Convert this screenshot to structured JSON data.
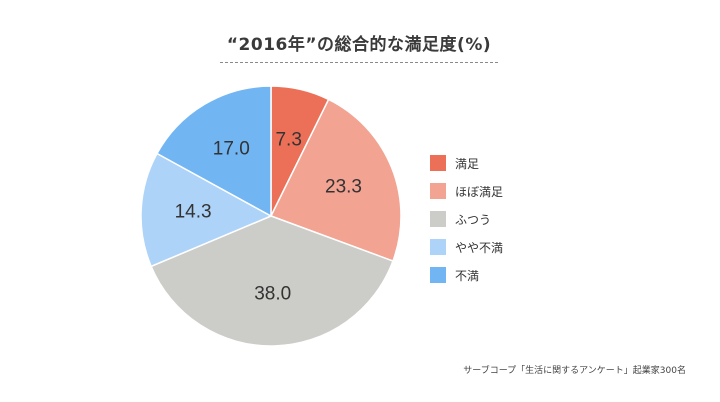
{
  "chart_data": {
    "type": "pie",
    "title": "“2016年”の総合的な満足度",
    "unit": "(%)",
    "categories": [
      "満足",
      "ほぼ満足",
      "ふつう",
      "やや不満",
      "不満"
    ],
    "values": [
      7.3,
      23.3,
      38.0,
      14.3,
      17.0
    ],
    "value_labels": [
      "7.3",
      "23.3",
      "38.0",
      "14.3",
      "17.0"
    ],
    "colors": [
      "#ec7058",
      "#f2a392",
      "#ccccc8",
      "#aed3f8",
      "#71b5f3"
    ],
    "start_angle": "12 o'clock, clockwise",
    "legend_position": "right"
  },
  "source_note": "サーブコープ「生活に関するアンケート」起業家300名"
}
